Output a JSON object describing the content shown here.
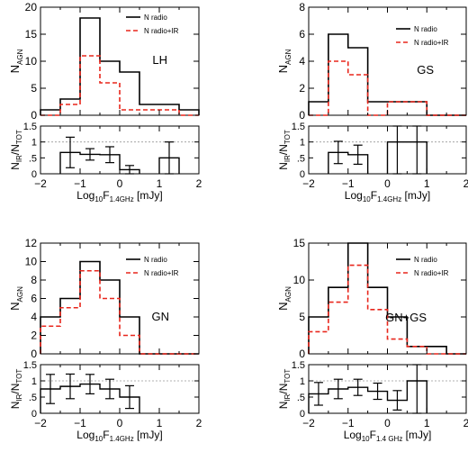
{
  "chart_data": [
    {
      "type": "histogram",
      "panel": "LH",
      "xlabel": "Log10F1.4GHz [mJy]",
      "xlim": [
        -2,
        2
      ],
      "xticks": [
        "−2",
        "−1",
        "0",
        "1",
        "2"
      ],
      "upper": {
        "ylabel": "N_AGN",
        "ylim": [
          0,
          20
        ],
        "yticks": [
          "0",
          "5",
          "10",
          "15",
          "20"
        ],
        "field_label": "LH",
        "edges": [
          -2,
          -1.5,
          -1,
          -0.5,
          0,
          0.5,
          1,
          1.5,
          2
        ],
        "series": [
          {
            "name": "N radio",
            "style": "solid",
            "color": "#000000",
            "values": [
              1,
              3,
              18,
              10,
              8,
              2,
              2,
              1
            ]
          },
          {
            "name": "N radio+IR",
            "style": "dashed",
            "color": "#e8261c",
            "values": [
              0,
              2,
              11,
              6,
              1,
              1,
              1,
              0
            ]
          }
        ]
      },
      "lower": {
        "ylabel": "N_IR/N_TOT",
        "ylim": [
          0,
          1.5
        ],
        "yticks": [
          "0",
          ".5",
          "1",
          "1.5"
        ],
        "bins": [
          {
            "x0": -1.5,
            "x1": -1,
            "y": 0.67,
            "err": 0.48
          },
          {
            "x0": -1,
            "x1": -0.5,
            "y": 0.61,
            "err": 0.18
          },
          {
            "x0": -0.5,
            "x1": 0,
            "y": 0.6,
            "err": 0.25
          },
          {
            "x0": 0,
            "x1": 0.5,
            "y": 0.13,
            "err": 0.13
          },
          {
            "x0": 1,
            "x1": 1.5,
            "y": 0.5,
            "err": 0.5
          }
        ]
      }
    },
    {
      "type": "histogram",
      "panel": "GS",
      "xlabel": "Log10F1.4GHz [mJy]",
      "xlim": [
        -2,
        2
      ],
      "xticks": [
        "−2",
        "−1",
        "0",
        "1",
        "2"
      ],
      "upper": {
        "ylabel": "N_AGN",
        "ylim": [
          0,
          8
        ],
        "yticks": [
          "0",
          "2",
          "4",
          "6",
          "8"
        ],
        "field_label": "GS",
        "edges": [
          -2,
          -1.5,
          -1,
          -0.5,
          0,
          0.5,
          1,
          1.5,
          2
        ],
        "series": [
          {
            "name": "N radio",
            "style": "solid",
            "color": "#000000",
            "values": [
              1,
              6,
              5,
              1,
              1,
              1,
              0,
              0
            ]
          },
          {
            "name": "N radio+IR",
            "style": "dashed",
            "color": "#e8261c",
            "values": [
              0,
              4,
              3,
              0,
              1,
              1,
              0,
              0
            ]
          }
        ]
      },
      "lower": {
        "ylabel": "N_IR/N_TOT",
        "ylim": [
          0,
          1.5
        ],
        "yticks": [
          "0",
          ".5",
          "1",
          "1.5"
        ],
        "bins": [
          {
            "x0": -1.5,
            "x1": -1,
            "y": 0.67,
            "err": 0.35
          },
          {
            "x0": -1,
            "x1": -0.5,
            "y": 0.6,
            "err": 0.3
          },
          {
            "x0": 0,
            "x1": 0.5,
            "y": 1.0,
            "err": 1.0
          },
          {
            "x0": 0.5,
            "x1": 1,
            "y": 1.0,
            "err": 1.0
          }
        ]
      }
    },
    {
      "type": "histogram",
      "panel": "GN",
      "xlabel": "Log10F1.4GHz [mJy]",
      "xlim": [
        -2,
        2
      ],
      "xticks": [
        "−2",
        "−1",
        "0",
        "1",
        "2"
      ],
      "upper": {
        "ylabel": "N_AGN",
        "ylim": [
          0,
          12
        ],
        "yticks": [
          "0",
          "2",
          "4",
          "6",
          "8",
          "10",
          "12"
        ],
        "field_label": "GN",
        "edges": [
          -2,
          -1.5,
          -1,
          -0.5,
          0,
          0.5,
          1,
          1.5,
          2
        ],
        "series": [
          {
            "name": "N radio",
            "style": "solid",
            "color": "#000000",
            "values": [
              4,
              6,
              10,
              8,
              4,
              0,
              0,
              0
            ]
          },
          {
            "name": "N radio+IR",
            "style": "dashed",
            "color": "#e8261c",
            "values": [
              3,
              5,
              9,
              6,
              2,
              0,
              0,
              0
            ]
          }
        ]
      },
      "lower": {
        "ylabel": "N_IR/N_TOT",
        "ylim": [
          0,
          1.5
        ],
        "yticks": [
          "0",
          ".5",
          "1",
          "1.5"
        ],
        "bins": [
          {
            "x0": -2,
            "x1": -1.5,
            "y": 0.75,
            "err": 0.45
          },
          {
            "x0": -1.5,
            "x1": -1,
            "y": 0.83,
            "err": 0.38
          },
          {
            "x0": -1,
            "x1": -0.5,
            "y": 0.9,
            "err": 0.3
          },
          {
            "x0": -0.5,
            "x1": 0,
            "y": 0.75,
            "err": 0.3
          },
          {
            "x0": 0,
            "x1": 0.5,
            "y": 0.5,
            "err": 0.35
          }
        ]
      }
    },
    {
      "type": "histogram",
      "panel": "GN+GS",
      "xlabel": "Log10F1.4 GHz [mJy]",
      "xlim": [
        -2,
        2
      ],
      "xticks": [
        "−2",
        "−1",
        "0",
        "1",
        "2"
      ],
      "upper": {
        "ylabel": "N_AGN",
        "ylim": [
          0,
          15
        ],
        "yticks": [
          "0",
          "5",
          "10",
          "15"
        ],
        "field_label": "GN+GS",
        "edges": [
          -2,
          -1.5,
          -1,
          -0.5,
          0,
          0.5,
          1,
          1.5,
          2
        ],
        "series": [
          {
            "name": "N radio",
            "style": "solid",
            "color": "#000000",
            "values": [
              5,
              9,
              15,
              9,
              5,
              1,
              1,
              0
            ]
          },
          {
            "name": "N radio+IR",
            "style": "dashed",
            "color": "#e8261c",
            "values": [
              3,
              7,
              12,
              6,
              2,
              1,
              0,
              0
            ]
          }
        ]
      },
      "lower": {
        "ylabel": "N_IR/N_TOT",
        "ylim": [
          0,
          1.5
        ],
        "yticks": [
          "0",
          ".5",
          "1",
          "1.5"
        ],
        "bins": [
          {
            "x0": -2,
            "x1": -1.5,
            "y": 0.6,
            "err": 0.35
          },
          {
            "x0": -1.5,
            "x1": -1,
            "y": 0.75,
            "err": 0.3
          },
          {
            "x0": -1,
            "x1": -0.5,
            "y": 0.8,
            "err": 0.25
          },
          {
            "x0": -0.5,
            "x1": 0,
            "y": 0.68,
            "err": 0.25
          },
          {
            "x0": 0,
            "x1": 0.5,
            "y": 0.4,
            "err": 0.3
          },
          {
            "x0": 0.5,
            "x1": 1,
            "y": 1.0,
            "err": 1.0
          }
        ]
      }
    }
  ]
}
